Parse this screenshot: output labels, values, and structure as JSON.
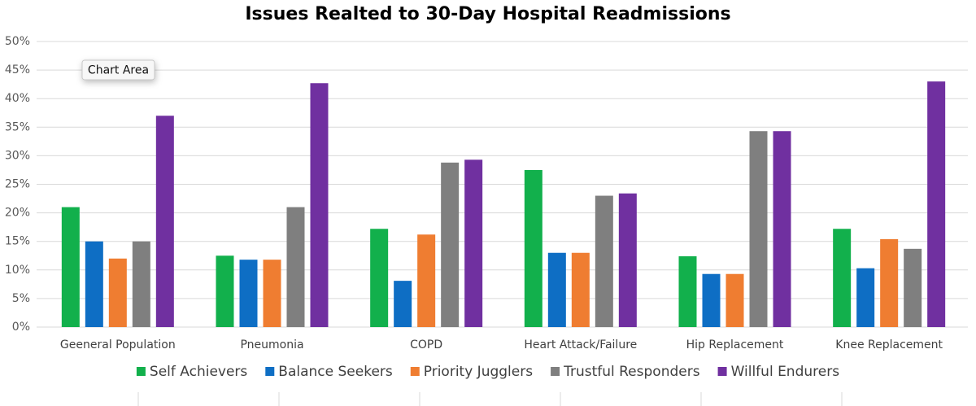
{
  "chart_data": {
    "type": "bar",
    "title": "Issues Realted to 30-Day Hospital Readmissions",
    "tooltip": "Chart Area",
    "categories": [
      "Geeneral Population",
      "Pneumonia",
      "COPD",
      "Heart Attack/Failure",
      "Hip Replacement",
      "Knee Replacement"
    ],
    "series": [
      {
        "name": "Self Achievers",
        "color": "#12b04c",
        "values": [
          21,
          12.5,
          17.2,
          27.5,
          12.4,
          17.2
        ]
      },
      {
        "name": "Balance Seekers",
        "color": "#0e6ec4",
        "values": [
          15,
          11.8,
          8.1,
          13,
          9.3,
          10.3
        ]
      },
      {
        "name": "Priority Jugglers",
        "color": "#ef7d31",
        "values": [
          12,
          11.8,
          16.2,
          13,
          9.3,
          15.4
        ]
      },
      {
        "name": "Trustful Responders",
        "color": "#7f7f7f",
        "values": [
          15,
          21,
          28.8,
          23,
          34.3,
          13.7
        ]
      },
      {
        "name": "Willful Endurers",
        "color": "#7030a0",
        "values": [
          37,
          42.7,
          29.3,
          23.4,
          34.3,
          43
        ]
      }
    ],
    "ylim": [
      0,
      50
    ],
    "yticks": [
      {
        "value": 0,
        "label": "0%"
      },
      {
        "value": 5,
        "label": "5%"
      },
      {
        "value": 10,
        "label": "10%"
      },
      {
        "value": 15,
        "label": "15%"
      },
      {
        "value": 20,
        "label": "20%"
      },
      {
        "value": 25,
        "label": "25%"
      },
      {
        "value": 30,
        "label": "30%"
      },
      {
        "value": 35,
        "label": "35%"
      },
      {
        "value": 40,
        "label": "40%"
      },
      {
        "value": 45,
        "label": "45%"
      },
      {
        "value": 50,
        "label": "50%"
      }
    ],
    "grid": true,
    "legend": "bottom"
  }
}
